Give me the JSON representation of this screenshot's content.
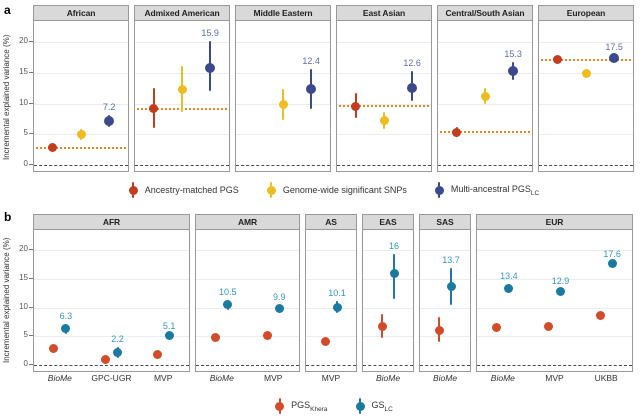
{
  "figure": {
    "panel_a_letter": "a",
    "panel_b_letter": "b"
  },
  "chart_data": [
    {
      "type": "pointrange",
      "panel": "a",
      "ylabel": "Incremental explained variance (%)",
      "ylim": [
        -1,
        23.5
      ],
      "yticks": [
        0,
        5,
        10,
        15,
        20
      ],
      "grid": true,
      "legend_position": "bottom",
      "baseline_color": "#e8851f",
      "zero_line": 0,
      "label_color": "#5e6daf",
      "series": [
        {
          "key": "ancestry-matched-pgs",
          "name": "Ancestry-matched PGS",
          "name_sub": "",
          "color": "#c33c1e",
          "slot": 0.2,
          "dot": 9
        },
        {
          "key": "genome-wide-significant-snps",
          "name": "Genome-wide significant SNPs",
          "name_sub": "",
          "color": "#eebd20",
          "slot": 0.5,
          "dot": 9
        },
        {
          "key": "multi-ancestral-pgs-lc",
          "name": "Multi-ancestral PGS",
          "name_sub": "LC",
          "color": "#3c4a8d",
          "slot": 0.8,
          "dot": 10
        }
      ],
      "facets": [
        {
          "label": "African",
          "baseline": 2.8,
          "points": [
            {
              "series": 0,
              "value": 2.8,
              "lo": 2.3,
              "hi": 3.3
            },
            {
              "series": 1,
              "value": 4.9,
              "lo": 4.0,
              "hi": 5.8
            },
            {
              "series": 2,
              "value": 7.2,
              "lo": 6.2,
              "hi": 8.2,
              "label": "7.2"
            }
          ]
        },
        {
          "label": "Admixed American",
          "baseline": 9.2,
          "points": [
            {
              "series": 0,
              "value": 9.2,
              "lo": 6.0,
              "hi": 12.6
            },
            {
              "series": 1,
              "value": 12.3,
              "lo": 8.7,
              "hi": 16.1
            },
            {
              "series": 2,
              "value": 15.9,
              "lo": 12.0,
              "hi": 20.2,
              "label": "15.9"
            }
          ]
        },
        {
          "label": "Middle Eastern",
          "baseline": null,
          "points": [
            {
              "series": 1,
              "value": 9.8,
              "lo": 7.3,
              "hi": 12.4
            },
            {
              "series": 2,
              "value": 12.4,
              "lo": 9.2,
              "hi": 15.6,
              "label": "12.4"
            }
          ]
        },
        {
          "label": "East Asian",
          "baseline": 9.6,
          "points": [
            {
              "series": 0,
              "value": 9.6,
              "lo": 7.6,
              "hi": 11.8
            },
            {
              "series": 1,
              "value": 7.2,
              "lo": 5.9,
              "hi": 8.6
            },
            {
              "series": 2,
              "value": 12.6,
              "lo": 10.4,
              "hi": 15.3,
              "label": "12.6"
            }
          ]
        },
        {
          "label": "Central/South Asian",
          "baseline": 5.3,
          "points": [
            {
              "series": 0,
              "value": 5.3,
              "lo": 4.5,
              "hi": 6.2
            },
            {
              "series": 1,
              "value": 11.2,
              "lo": 9.9,
              "hi": 12.5
            },
            {
              "series": 2,
              "value": 15.3,
              "lo": 13.8,
              "hi": 16.8,
              "label": "15.3"
            }
          ]
        },
        {
          "label": "European",
          "baseline": 17.2,
          "points": [
            {
              "series": 0,
              "value": 17.2,
              "lo": 16.7,
              "hi": 17.7
            },
            {
              "series": 1,
              "value": 14.9,
              "lo": 14.3,
              "hi": 15.5
            },
            {
              "series": 2,
              "value": 17.5,
              "lo": 17.0,
              "hi": 18.0,
              "label": "17.5"
            }
          ]
        }
      ]
    },
    {
      "type": "pointrange",
      "panel": "b",
      "ylabel": "Incremental explained variance (%)",
      "ylim": [
        -1,
        23.5
      ],
      "yticks": [
        0,
        5,
        10,
        15,
        20
      ],
      "grid": true,
      "legend_position": "bottom",
      "zero_line": 0,
      "label_color": "#3397c6",
      "series": [
        {
          "key": "pgs-khera",
          "name": "PGS",
          "name_sub": "Khera",
          "color": "#d34b28",
          "offset": -6,
          "dot": 9
        },
        {
          "key": "gs-lc",
          "name": "GS",
          "name_sub": "LC",
          "color": "#1a7aa2",
          "offset": 6,
          "dot": 9
        }
      ],
      "facets": [
        {
          "label": "AFR",
          "cohorts": [
            {
              "name": "BioMe",
              "italic": true,
              "points": [
                {
                  "series": 0,
                  "value": 2.9,
                  "lo": 2.5,
                  "hi": 3.4
                },
                {
                  "series": 1,
                  "value": 6.3,
                  "lo": 5.5,
                  "hi": 7.1,
                  "label": "6.3"
                }
              ]
            },
            {
              "name": "GPC-UGR",
              "italic": false,
              "points": [
                {
                  "series": 0,
                  "value": 1.0,
                  "lo": 0.5,
                  "hi": 1.6
                },
                {
                  "series": 1,
                  "value": 2.2,
                  "lo": 1.2,
                  "hi": 3.2,
                  "label": "2.2"
                }
              ]
            },
            {
              "name": "MVP",
              "italic": false,
              "points": [
                {
                  "series": 0,
                  "value": 1.8,
                  "lo": 1.5,
                  "hi": 2.1
                },
                {
                  "series": 1,
                  "value": 5.1,
                  "lo": 4.7,
                  "hi": 5.5,
                  "label": "5.1"
                }
              ]
            }
          ]
        },
        {
          "label": "AMR",
          "cohorts": [
            {
              "name": "BioMe",
              "italic": true,
              "points": [
                {
                  "series": 0,
                  "value": 4.9,
                  "lo": 4.3,
                  "hi": 5.5
                },
                {
                  "series": 1,
                  "value": 10.5,
                  "lo": 9.6,
                  "hi": 11.4,
                  "label": "10.5"
                }
              ]
            },
            {
              "name": "MVP",
              "italic": false,
              "points": [
                {
                  "series": 0,
                  "value": 5.1,
                  "lo": 4.7,
                  "hi": 5.5
                },
                {
                  "series": 1,
                  "value": 9.9,
                  "lo": 9.3,
                  "hi": 10.5,
                  "label": "9.9"
                }
              ]
            }
          ]
        },
        {
          "label": "AS",
          "cohorts": [
            {
              "name": "MVP",
              "italic": false,
              "points": [
                {
                  "series": 0,
                  "value": 4.2,
                  "lo": 3.6,
                  "hi": 4.8
                },
                {
                  "series": 1,
                  "value": 10.1,
                  "lo": 9.0,
                  "hi": 11.2,
                  "label": "10.1"
                }
              ]
            }
          ]
        },
        {
          "label": "EAS",
          "cohorts": [
            {
              "name": "BioMe",
              "italic": true,
              "points": [
                {
                  "series": 0,
                  "value": 6.7,
                  "lo": 4.7,
                  "hi": 8.9
                },
                {
                  "series": 1,
                  "value": 16,
                  "lo": 11.5,
                  "hi": 19.4,
                  "label": "16"
                }
              ]
            }
          ]
        },
        {
          "label": "SAS",
          "cohorts": [
            {
              "name": "BioMe",
              "italic": true,
              "points": [
                {
                  "series": 0,
                  "value": 6.1,
                  "lo": 4.0,
                  "hi": 8.4
                },
                {
                  "series": 1,
                  "value": 13.7,
                  "lo": 10.4,
                  "hi": 16.9,
                  "label": "13.7"
                }
              ]
            }
          ]
        },
        {
          "label": "EUR",
          "cohorts": [
            {
              "name": "BioMe",
              "italic": true,
              "points": [
                {
                  "series": 0,
                  "value": 6.5,
                  "lo": 6.0,
                  "hi": 7.0
                },
                {
                  "series": 1,
                  "value": 13.4,
                  "lo": 12.6,
                  "hi": 14.2,
                  "label": "13.4"
                }
              ]
            },
            {
              "name": "MVP",
              "italic": false,
              "points": [
                {
                  "series": 0,
                  "value": 6.7,
                  "lo": 6.4,
                  "hi": 7.0
                },
                {
                  "series": 1,
                  "value": 12.9,
                  "lo": 12.5,
                  "hi": 13.3,
                  "label": "12.9"
                }
              ]
            },
            {
              "name": "UKBB",
              "italic": false,
              "points": [
                {
                  "series": 0,
                  "value": 8.6,
                  "lo": 8.3,
                  "hi": 8.9
                },
                {
                  "series": 1,
                  "value": 17.6,
                  "lo": 17.2,
                  "hi": 18.0,
                  "label": "17.6"
                }
              ]
            }
          ]
        }
      ]
    }
  ]
}
